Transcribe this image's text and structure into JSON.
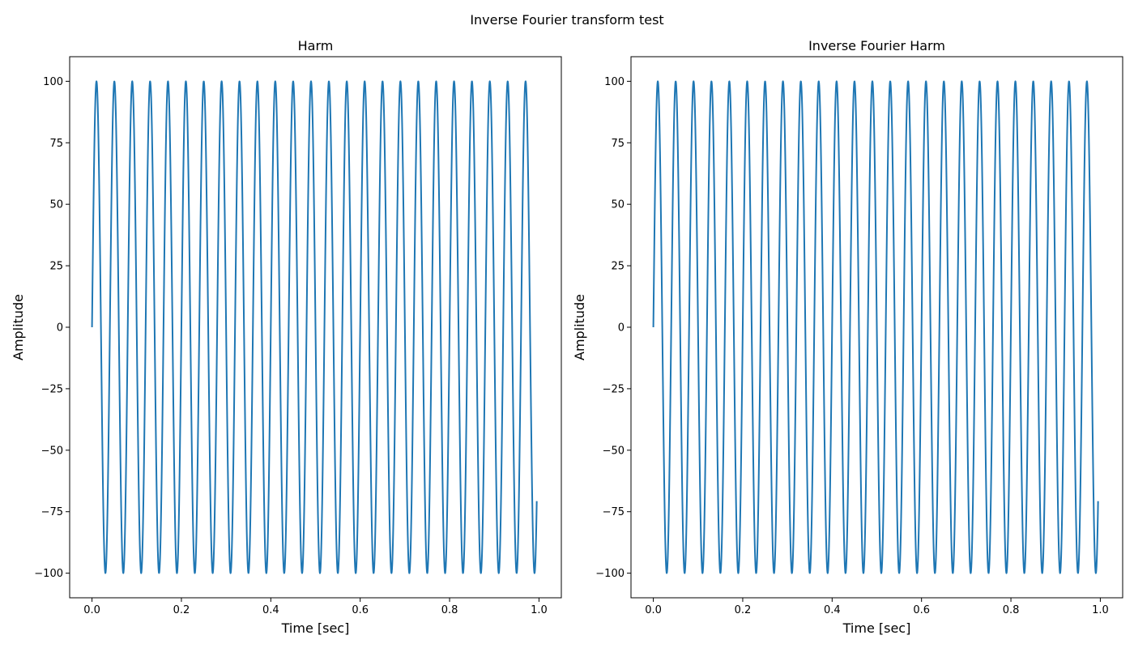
{
  "figure": {
    "suptitle": "Inverse Fourier transform test"
  },
  "chart_data": [
    {
      "type": "line",
      "title": "Harm",
      "xlabel": "Time [sec]",
      "ylabel": "Amplitude",
      "xlim": [
        -0.05,
        1.05
      ],
      "ylim": [
        -110,
        110
      ],
      "xticks": [
        0.0,
        0.2,
        0.4,
        0.6,
        0.8,
        1.0
      ],
      "xtick_labels": [
        "0.0",
        "0.2",
        "0.4",
        "0.6",
        "0.8",
        "1.0"
      ],
      "yticks": [
        -100,
        -75,
        -50,
        -25,
        0,
        25,
        50,
        75,
        100
      ],
      "ytick_labels": [
        "−100",
        "−75",
        "−50",
        "−25",
        "0",
        "25",
        "50",
        "75",
        "100"
      ],
      "grid": false,
      "series": [
        {
          "function": "sine",
          "amplitude": 100,
          "frequency_hz": 25,
          "x_start": 0.0,
          "x_end": 0.995,
          "color": "#1f77b4"
        }
      ]
    },
    {
      "type": "line",
      "title": "Inverse Fourier Harm",
      "xlabel": "Time [sec]",
      "ylabel": "Amplitude",
      "xlim": [
        -0.05,
        1.05
      ],
      "ylim": [
        -110,
        110
      ],
      "xticks": [
        0.0,
        0.2,
        0.4,
        0.6,
        0.8,
        1.0
      ],
      "xtick_labels": [
        "0.0",
        "0.2",
        "0.4",
        "0.6",
        "0.8",
        "1.0"
      ],
      "yticks": [
        -100,
        -75,
        -50,
        -25,
        0,
        25,
        50,
        75,
        100
      ],
      "ytick_labels": [
        "−100",
        "−75",
        "−50",
        "−25",
        "0",
        "25",
        "50",
        "75",
        "100"
      ],
      "grid": false,
      "series": [
        {
          "function": "sine",
          "amplitude": 100,
          "frequency_hz": 25,
          "x_start": 0.0,
          "x_end": 0.995,
          "color": "#1f77b4"
        }
      ]
    }
  ]
}
